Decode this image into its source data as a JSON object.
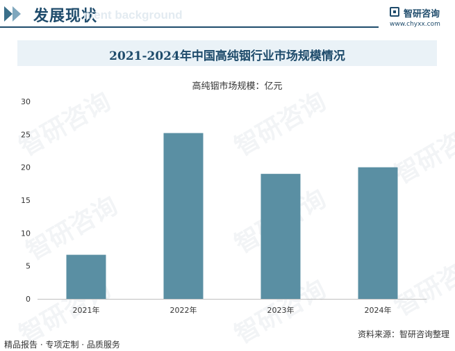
{
  "header": {
    "section_title": "发展现状",
    "ghost_text": "ment background",
    "logo_name": "智研咨询",
    "logo_url": "www.chyxx.com"
  },
  "watermark_text": "智研咨询",
  "chart_data": {
    "type": "bar",
    "title": "2021-2024年中国高纯铟行业市场规模情况",
    "series": [
      {
        "name": "高纯铟市场规模：亿元",
        "values": [
          6.7,
          25.2,
          19.0,
          20.0
        ]
      }
    ],
    "categories": [
      "2021年",
      "2022年",
      "2023年",
      "2024年"
    ],
    "ylim": [
      0,
      30
    ],
    "yticks": [
      0,
      5,
      10,
      15,
      20,
      25,
      30
    ],
    "bar_color": "#5a8fa3",
    "grid": false,
    "legend_position": "top-center"
  },
  "footer": {
    "source": "资料来源：智研咨询整理",
    "slogan": "精品报告 · 专项定制 · 品质服务"
  }
}
